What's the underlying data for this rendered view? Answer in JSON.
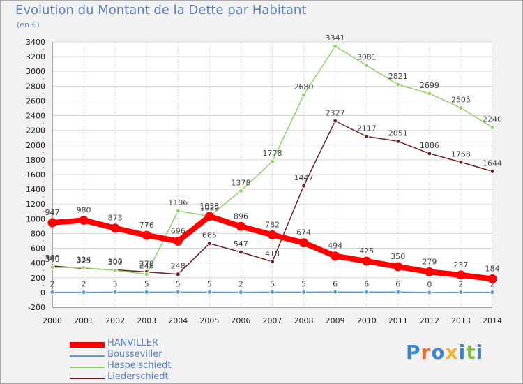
{
  "title": "Evolution du Montant de la Dette par Habitant",
  "subtitle": "(en €)",
  "logo": [
    "P",
    "r",
    "o",
    "x",
    "i",
    "t",
    "i"
  ],
  "logo_colors": [
    "#3d87c8",
    "#e8733a",
    "#3d87c8",
    "#f2b233",
    "#3d87c8",
    "#7cbf3c",
    "#3d87c8"
  ],
  "chart_data": {
    "type": "line",
    "x": [
      2000,
      2001,
      2002,
      2003,
      2004,
      2005,
      2006,
      2007,
      2008,
      2009,
      2010,
      2011,
      2012,
      2013,
      2014
    ],
    "ylim": [
      -200,
      3400
    ],
    "yticks": [
      -200,
      0,
      200,
      400,
      600,
      800,
      1000,
      1200,
      1400,
      1600,
      1800,
      2000,
      2200,
      2400,
      2600,
      2800,
      3000,
      3200,
      3400
    ],
    "grid": true,
    "legend_position": "bottom-left",
    "series": [
      {
        "name": "HANVILLER",
        "color": "#ff0000",
        "values": [
          947,
          980,
          873,
          776,
          696,
          1033,
          896,
          782,
          674,
          494,
          425,
          350,
          279,
          237,
          184
        ]
      },
      {
        "name": "Bousseviller",
        "color": "#5b9bd5",
        "values": [
          2,
          2,
          5,
          5,
          5,
          5,
          2,
          5,
          5,
          6,
          6,
          6,
          0,
          2,
          2
        ]
      },
      {
        "name": "Haspelschiedt",
        "color": "#8fd46b",
        "values": [
          340,
          334,
          300,
          248,
          1106,
          1035,
          1378,
          1778,
          2680,
          3341,
          3081,
          2821,
          2699,
          2505,
          2240
        ]
      },
      {
        "name": "Liederschiedt",
        "color": "#6b1f1f",
        "values": [
          360,
          325,
          307,
          278,
          248,
          665,
          547,
          418,
          1447,
          2327,
          2117,
          2051,
          1886,
          1768,
          1644
        ]
      }
    ]
  }
}
